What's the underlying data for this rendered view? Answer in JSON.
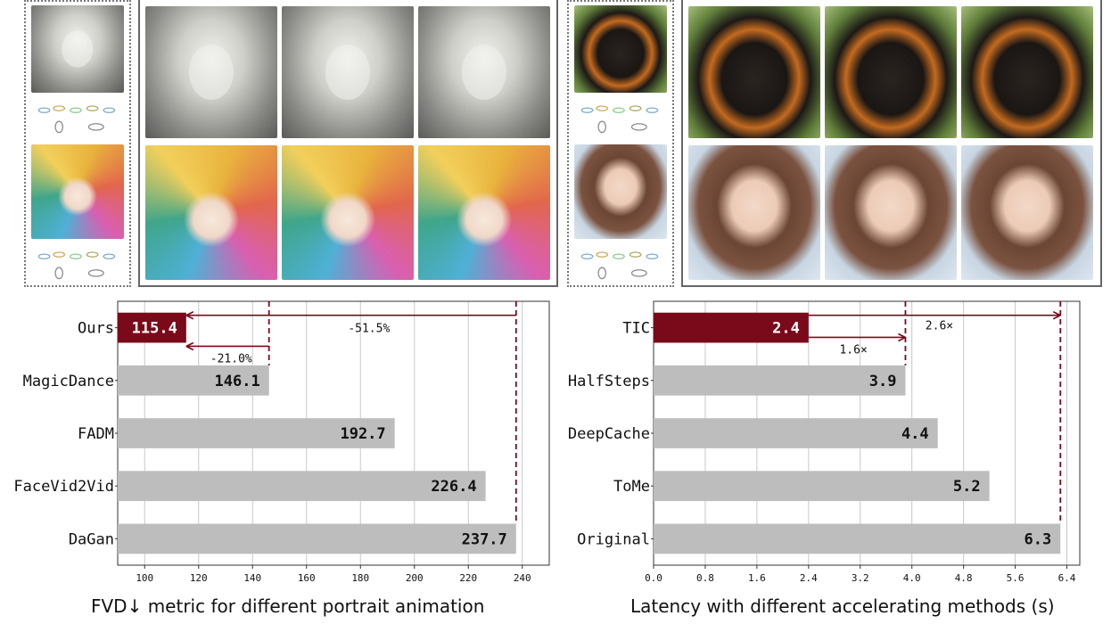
{
  "figure": {
    "left_caption": "FVD↓ metric for different portrait animation",
    "right_caption": "Latency with different accelerating methods (s)",
    "tiles": [
      "reference-statue",
      "keypoints",
      "reference-colorful",
      "keypoints",
      "statue-frame",
      "statue-frame",
      "statue-frame",
      "colorful-frame",
      "colorful-frame",
      "colorful-frame",
      "reference-monkey",
      "keypoints",
      "reference-anime",
      "keypoints",
      "monkey-frame",
      "monkey-frame",
      "monkey-frame",
      "anime-frame",
      "anime-frame",
      "anime-frame"
    ]
  },
  "chart_data": [
    {
      "type": "bar",
      "orientation": "horizontal",
      "categories": [
        "Ours",
        "MagicDance",
        "FADM",
        "FaceVid2Vid",
        "DaGan"
      ],
      "values": [
        115.4,
        146.1,
        192.7,
        226.4,
        237.7
      ],
      "value_labels": [
        "115.4",
        "146.1",
        "192.7",
        "226.4",
        "237.7"
      ],
      "xlim": [
        90,
        250
      ],
      "xticks": [
        100,
        120,
        140,
        160,
        180,
        200,
        220,
        240
      ],
      "grid": true,
      "highlight_color": "#7a0a1a",
      "bar_color": "#bdbdbd",
      "annotations": [
        {
          "text": "-51.5%",
          "from": 237.7,
          "to": 115.4
        },
        {
          "text": "-21.0%",
          "from": 146.1,
          "to": 115.4
        }
      ]
    },
    {
      "type": "bar",
      "orientation": "horizontal",
      "categories": [
        "TIC",
        "HalfSteps",
        "DeepCache",
        "ToMe",
        "Original"
      ],
      "values": [
        2.4,
        3.9,
        4.4,
        5.2,
        6.3
      ],
      "value_labels": [
        "2.4",
        "3.9",
        "4.4",
        "5.2",
        "6.3"
      ],
      "xlim": [
        0,
        6.6
      ],
      "xticks": [
        0.0,
        0.8,
        1.6,
        2.4,
        3.2,
        4.0,
        4.8,
        5.6,
        6.4
      ],
      "xtick_labels": [
        "0.0",
        "0.8",
        "1.6",
        "2.4",
        "3.2",
        "4.0",
        "4.8",
        "5.6",
        "6.4"
      ],
      "grid": true,
      "highlight_color": "#7a0a1a",
      "bar_color": "#bdbdbd",
      "annotations": [
        {
          "text": "1.6×",
          "from": 2.4,
          "to": 3.9
        },
        {
          "text": "2.6×",
          "from": 2.4,
          "to": 6.3
        }
      ]
    }
  ]
}
